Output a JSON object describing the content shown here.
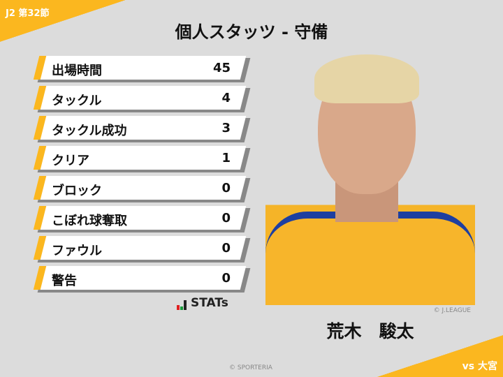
{
  "header": {
    "round": "J2 第32節",
    "title": "個人スタッツ - 守備",
    "opponent": "vs 大宮"
  },
  "stats": [
    {
      "label": "出場時間",
      "value": "45"
    },
    {
      "label": "タックル",
      "value": "4"
    },
    {
      "label": "タックル成功",
      "value": "3"
    },
    {
      "label": "クリア",
      "value": "1"
    },
    {
      "label": "ブロック",
      "value": "0"
    },
    {
      "label": "こぼれ球奪取",
      "value": "0"
    },
    {
      "label": "ファウル",
      "value": "0"
    },
    {
      "label": "警告",
      "value": "0"
    }
  ],
  "stats_logo": "STATs",
  "player": {
    "name": "荒木　駿太",
    "photo_credit": "© J.LEAGUE"
  },
  "footer": {
    "copyright": "© SPORTERIA"
  },
  "colors": {
    "accent": "#fbb71f",
    "background": "#dcdcdc"
  }
}
